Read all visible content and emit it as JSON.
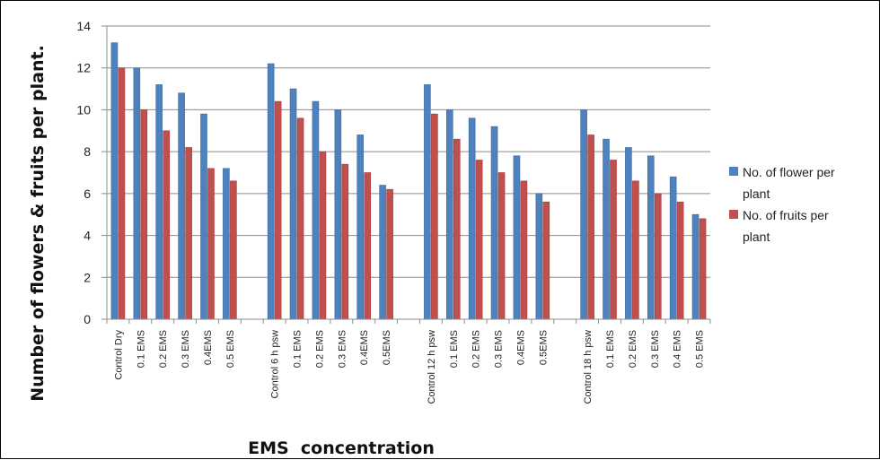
{
  "chart_data": {
    "type": "bar",
    "title": "",
    "xlabel": "EMS  concentration",
    "ylabel": "Number of flowers & fruits per plant.",
    "ylim": [
      0,
      14
    ],
    "yticks": [
      0,
      2,
      4,
      6,
      8,
      10,
      12,
      14
    ],
    "grid": true,
    "legend_position": "right",
    "categories": [
      "Control Dry",
      "0.1 EMS",
      "0.2 EMS",
      "0.3 EMS",
      "0.4EMS",
      "0.5 EMS",
      "",
      "Control 6 h psw",
      "0.1 EMS",
      "0.2 EMS",
      "0.3 EMS",
      "0.4EMS",
      "0.5EMS",
      "",
      "Control 12 h psw",
      "0.1 EMS",
      "0.2 EMS",
      "0.3 EMS",
      "0.4EMS",
      "0.5EMS",
      "",
      "Control 18 h psw",
      "0.1 EMS",
      "0.2 EMS",
      "0.3 EMS",
      "0.4 EMS",
      "0.5 EMS"
    ],
    "series": [
      {
        "name": "No. of flower per plant",
        "color": "#4f81bd",
        "values": [
          13.2,
          12.0,
          11.2,
          10.8,
          9.8,
          7.2,
          null,
          12.2,
          11.0,
          10.4,
          10.0,
          8.8,
          6.4,
          null,
          11.2,
          10.0,
          9.6,
          9.2,
          7.8,
          6.0,
          null,
          10.0,
          8.6,
          8.2,
          7.8,
          6.8,
          5.0
        ]
      },
      {
        "name": "No. of fruits per plant",
        "color": "#c0504d",
        "values": [
          12.0,
          10.0,
          9.0,
          8.2,
          7.2,
          6.6,
          null,
          10.4,
          9.6,
          8.0,
          7.4,
          7.0,
          6.2,
          null,
          9.8,
          8.6,
          7.6,
          7.0,
          6.6,
          5.6,
          null,
          8.8,
          7.6,
          6.6,
          6.0,
          5.6,
          4.8
        ]
      }
    ]
  },
  "legend": {
    "series1_line1": "No. of flower per",
    "series1_line2": "plant",
    "series2_line1": "No. of fruits per",
    "series2_line2": "plant"
  }
}
